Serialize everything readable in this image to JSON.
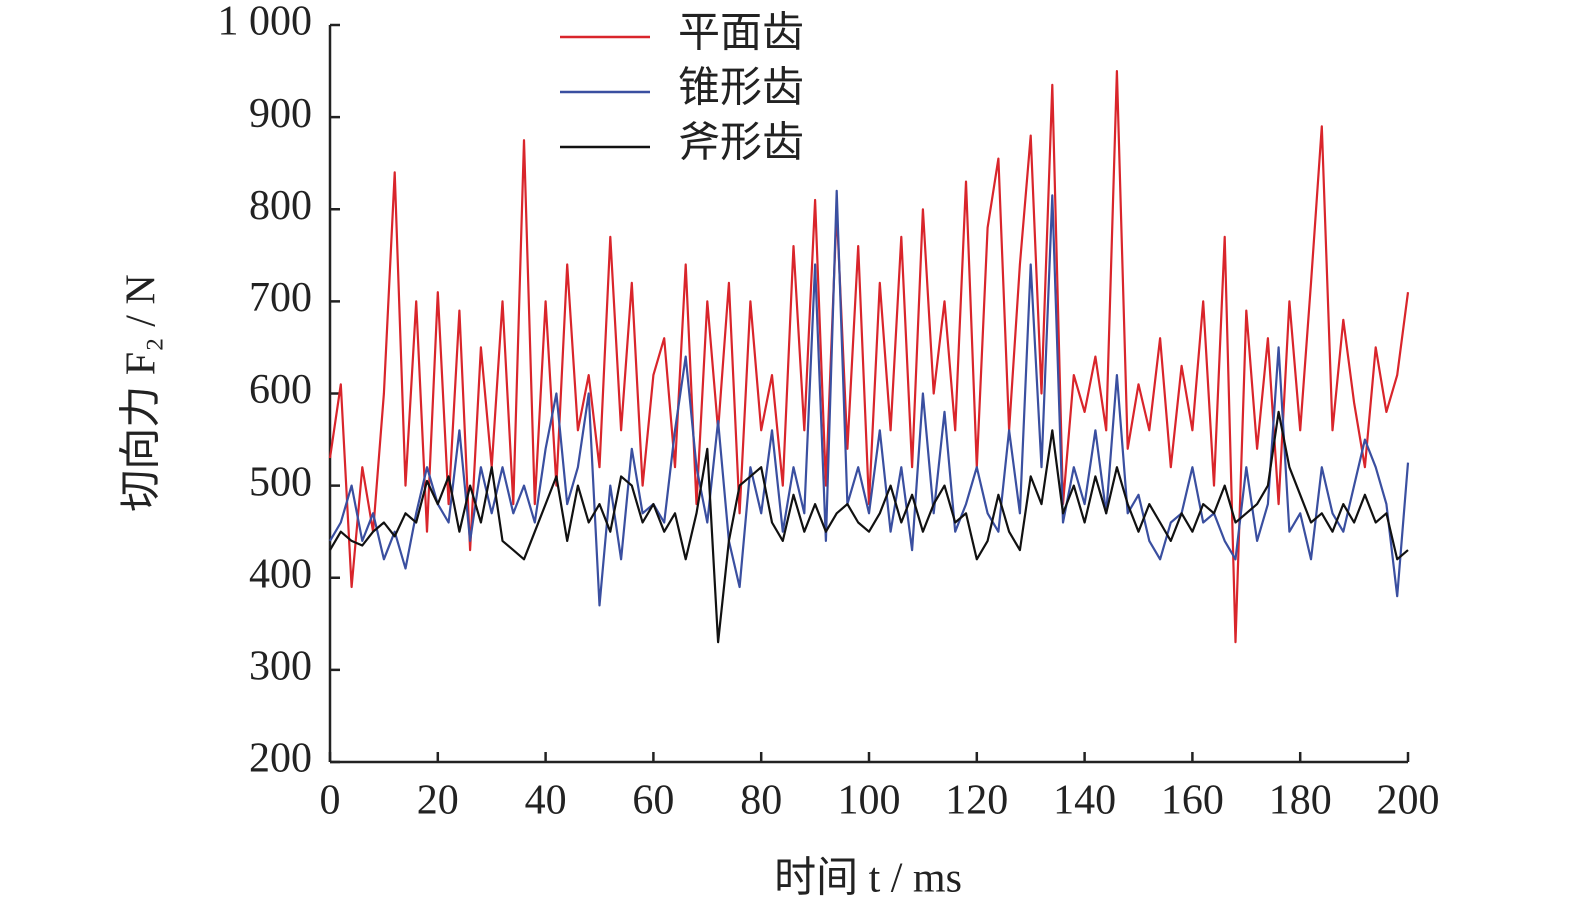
{
  "chart_data": {
    "type": "line",
    "xlabel": "时间 t / ms",
    "ylabel": "切向力 F₂ / N",
    "x": [
      0,
      2,
      4,
      6,
      8,
      10,
      12,
      14,
      16,
      18,
      20,
      22,
      24,
      26,
      28,
      30,
      32,
      34,
      36,
      38,
      40,
      42,
      44,
      46,
      48,
      50,
      52,
      54,
      56,
      58,
      60,
      62,
      64,
      66,
      68,
      70,
      72,
      74,
      76,
      78,
      80,
      82,
      84,
      86,
      88,
      90,
      92,
      94,
      96,
      98,
      100,
      102,
      104,
      106,
      108,
      110,
      112,
      114,
      116,
      118,
      120,
      122,
      124,
      126,
      128,
      130,
      132,
      134,
      136,
      138,
      140,
      142,
      144,
      146,
      148,
      150,
      152,
      154,
      156,
      158,
      160,
      162,
      164,
      166,
      168,
      170,
      172,
      174,
      176,
      178,
      180,
      182,
      184,
      186,
      188,
      190,
      192,
      194,
      196,
      198,
      200
    ],
    "series": [
      {
        "name": "平面齿",
        "color": "#d9252b",
        "values": [
          530,
          610,
          390,
          520,
          450,
          600,
          840,
          500,
          700,
          450,
          710,
          480,
          690,
          430,
          650,
          520,
          700,
          480,
          875,
          480,
          700,
          500,
          740,
          560,
          620,
          520,
          770,
          560,
          720,
          500,
          620,
          660,
          520,
          740,
          480,
          700,
          560,
          720,
          470,
          700,
          560,
          620,
          500,
          760,
          560,
          810,
          500,
          800,
          540,
          760,
          480,
          720,
          560,
          770,
          520,
          800,
          600,
          700,
          560,
          830,
          520,
          780,
          855,
          560,
          740,
          880,
          600,
          935,
          480,
          620,
          580,
          640,
          560,
          950,
          540,
          610,
          560,
          660,
          520,
          630,
          560,
          700,
          500,
          770,
          330,
          690,
          540,
          660,
          480,
          700,
          560,
          720,
          890,
          560,
          680,
          590,
          520,
          650,
          580,
          620,
          710
        ]
      },
      {
        "name": "锥形齿",
        "color": "#3a4fa0",
        "values": [
          440,
          460,
          500,
          440,
          470,
          420,
          450,
          410,
          470,
          520,
          480,
          460,
          560,
          440,
          520,
          470,
          520,
          470,
          500,
          460,
          540,
          600,
          480,
          520,
          600,
          370,
          500,
          420,
          540,
          470,
          480,
          460,
          560,
          640,
          520,
          460,
          570,
          440,
          390,
          520,
          470,
          560,
          450,
          520,
          470,
          740,
          440,
          820,
          480,
          520,
          470,
          560,
          450,
          520,
          430,
          600,
          470,
          580,
          450,
          480,
          520,
          470,
          450,
          560,
          470,
          740,
          520,
          815,
          460,
          520,
          480,
          560,
          470,
          620,
          470,
          490,
          440,
          420,
          460,
          470,
          520,
          460,
          470,
          440,
          420,
          520,
          440,
          480,
          650,
          450,
          470,
          420,
          520,
          470,
          450,
          500,
          550,
          520,
          480,
          380,
          525
        ]
      },
      {
        "name": "斧形齿",
        "color": "#111111",
        "values": [
          430,
          450,
          440,
          435,
          450,
          460,
          445,
          470,
          460,
          505,
          480,
          510,
          450,
          500,
          460,
          520,
          440,
          430,
          420,
          450,
          480,
          510,
          440,
          500,
          460,
          480,
          450,
          510,
          500,
          460,
          480,
          450,
          470,
          420,
          470,
          540,
          330,
          440,
          500,
          510,
          520,
          460,
          440,
          490,
          450,
          480,
          450,
          470,
          480,
          460,
          450,
          470,
          500,
          460,
          490,
          450,
          480,
          500,
          460,
          470,
          420,
          440,
          490,
          450,
          430,
          510,
          480,
          560,
          470,
          500,
          460,
          510,
          470,
          520,
          480,
          450,
          480,
          460,
          440,
          470,
          450,
          480,
          470,
          500,
          460,
          470,
          480,
          500,
          580,
          520,
          490,
          460,
          470,
          450,
          480,
          460,
          490,
          460,
          470,
          420,
          430
        ]
      }
    ],
    "xlim": [
      0,
      200
    ],
    "xticks": [
      0,
      20,
      40,
      60,
      80,
      100,
      120,
      140,
      160,
      180,
      200
    ],
    "ylim": [
      200,
      1000
    ],
    "yticks": [
      200,
      300,
      400,
      500,
      600,
      700,
      800,
      900,
      {
        "value": 1000,
        "label": "1 000"
      }
    ]
  }
}
